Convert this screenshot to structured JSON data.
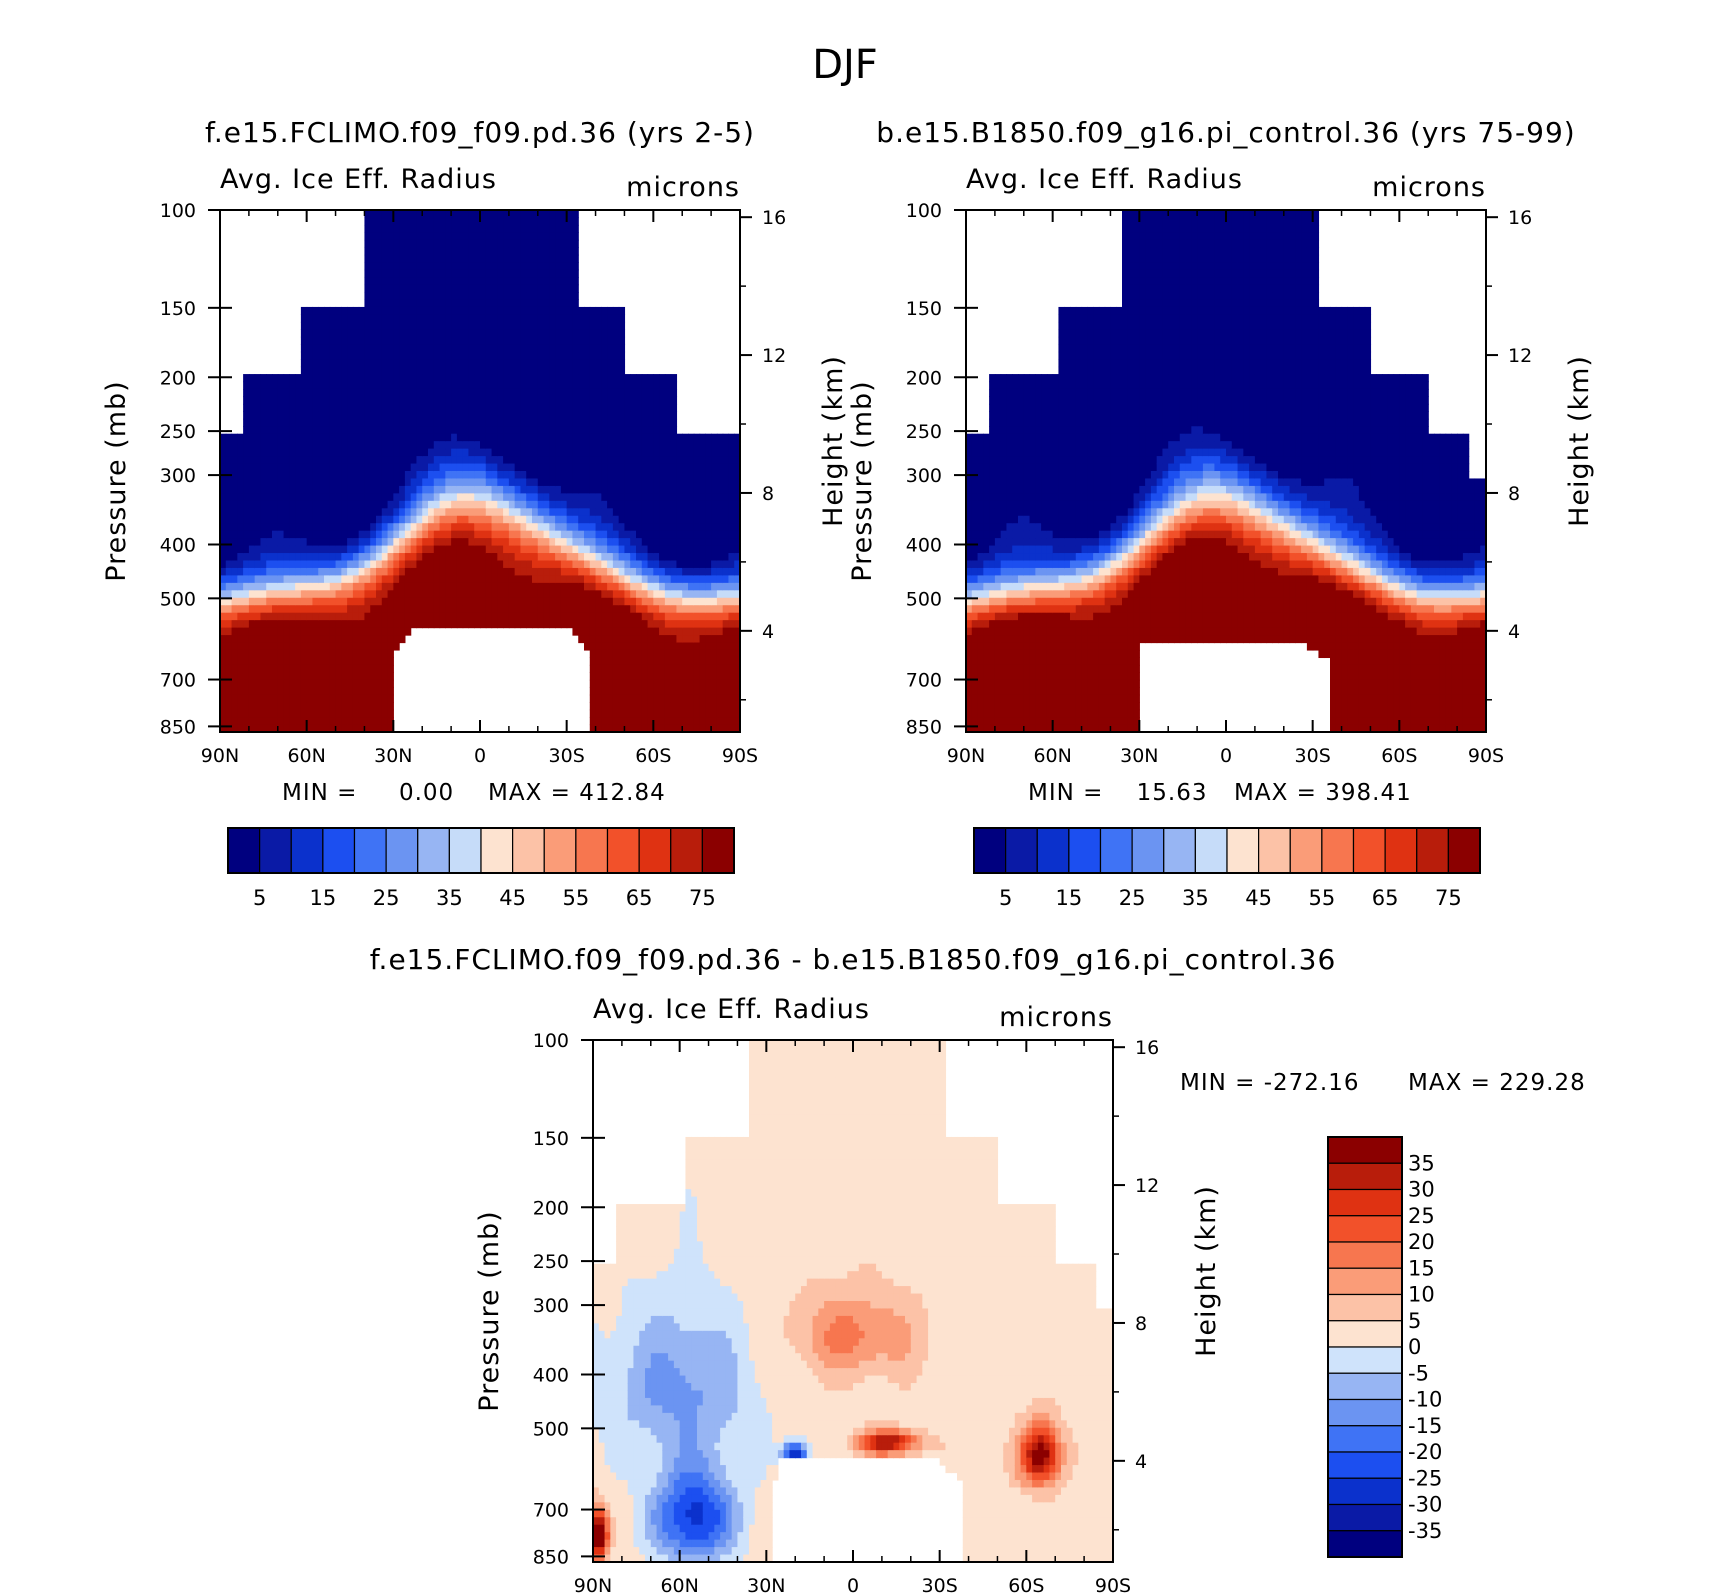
{
  "figure": {
    "title": "DJF"
  },
  "colors": {
    "abs_palette": [
      "#00007f",
      "#0a1aa6",
      "#0b31cc",
      "#1c4ff0",
      "#3f73f5",
      "#6b94f2",
      "#97b5f3",
      "#c6dcf9",
      "#fde3d0",
      "#fcc2a7",
      "#fa9c78",
      "#f7764f",
      "#f2512a",
      "#df3212",
      "#b81d0b",
      "#8b0000"
    ],
    "diff_palette": [
      "#00007f",
      "#0a1aa6",
      "#0b31cc",
      "#1c4ff0",
      "#3f73f5",
      "#6b94f2",
      "#97b5f3",
      "#cfe3fb",
      "#fde3d0",
      "#fcc2a7",
      "#fa9c78",
      "#f7764f",
      "#f2512a",
      "#df3212",
      "#b81d0b",
      "#8b0000"
    ]
  },
  "chart_data": [
    {
      "type": "heatmap",
      "id": "panel_a",
      "title": "f.e15.FCLIMO.f09_f09.pd.36 (yrs 2-5)",
      "left_label": "Avg. Ice Eff. Radius",
      "right_label": "microns",
      "xlabel": "",
      "ylabel": "Pressure (mb)",
      "ylabel_right": "Height (km)",
      "x_ticks": [
        "90N",
        "60N",
        "30N",
        "0",
        "30S",
        "60S",
        "90S"
      ],
      "y_ticks": [
        "100",
        "150",
        "200",
        "250",
        "300",
        "400",
        "500",
        "700",
        "850"
      ],
      "y_ticks_right": [
        "16",
        "12",
        "8",
        "4"
      ],
      "xlim": [
        90,
        -90
      ],
      "ylim": [
        870,
        100
      ],
      "min_text": "MIN =     0.00",
      "max_text": "MAX = 412.84",
      "colorbar": {
        "orientation": "horizontal",
        "labels": [
          "5",
          "15",
          "25",
          "35",
          "45",
          "55",
          "65",
          "75"
        ],
        "levels": [
          5,
          10,
          15,
          20,
          25,
          30,
          35,
          40,
          45,
          50,
          55,
          60,
          65,
          70,
          75
        ]
      },
      "cloud_top_mb": [
        [
          90,
          250
        ],
        [
          75,
          200
        ],
        [
          50,
          150
        ],
        [
          30,
          100
        ],
        [
          -27,
          100
        ],
        [
          -42,
          150
        ],
        [
          -60,
          200
        ],
        [
          -78,
          250
        ],
        [
          -90,
          250
        ]
      ],
      "surface_gap": [
        [
          30,
          620
        ],
        [
          22,
          560
        ],
        [
          -30,
          560
        ],
        [
          -38,
          620
        ]
      ]
    },
    {
      "type": "heatmap",
      "id": "panel_b",
      "title": "b.e15.B1850.f09_g16.pi_control.36 (yrs 75-99)",
      "left_label": "Avg. Ice Eff. Radius",
      "right_label": "microns",
      "xlabel": "",
      "ylabel": "Pressure (mb)",
      "ylabel_right": "Height (km)",
      "x_ticks": [
        "90N",
        "60N",
        "30N",
        "0",
        "30S",
        "60S",
        "90S"
      ],
      "y_ticks": [
        "100",
        "150",
        "200",
        "250",
        "300",
        "400",
        "500",
        "700",
        "850"
      ],
      "y_ticks_right": [
        "16",
        "12",
        "8",
        "4"
      ],
      "xlim": [
        90,
        -90
      ],
      "ylim": [
        870,
        100
      ],
      "min_text": "MIN =    15.63",
      "max_text": "MAX = 398.41",
      "colorbar": {
        "orientation": "horizontal",
        "labels": [
          "5",
          "15",
          "25",
          "35",
          "45",
          "55",
          "65",
          "75"
        ],
        "levels": [
          5,
          10,
          15,
          20,
          25,
          30,
          35,
          40,
          45,
          50,
          55,
          60,
          65,
          70,
          75
        ]
      },
      "cloud_top_mb": [
        [
          90,
          250
        ],
        [
          75,
          200
        ],
        [
          40,
          150
        ],
        [
          30,
          100
        ],
        [
          -25,
          100
        ],
        [
          -40,
          150
        ],
        [
          -62,
          200
        ],
        [
          -80,
          250
        ],
        [
          -90,
          300
        ]
      ],
      "surface_gap": [
        [
          30,
          600
        ],
        [
          25,
          600
        ],
        [
          -25,
          600
        ],
        [
          -35,
          640
        ]
      ]
    },
    {
      "type": "heatmap",
      "id": "panel_diff",
      "title": "f.e15.FCLIMO.f09_f09.pd.36 - b.e15.B1850.f09_g16.pi_control.36",
      "left_label": "Avg. Ice Eff. Radius",
      "right_label": "microns",
      "xlabel": "",
      "ylabel": "Pressure (mb)",
      "ylabel_right": "Height (km)",
      "x_ticks": [
        "90N",
        "60N",
        "30N",
        "0",
        "30S",
        "60S",
        "90S"
      ],
      "y_ticks": [
        "100",
        "150",
        "200",
        "250",
        "300",
        "400",
        "500",
        "700",
        "850"
      ],
      "y_ticks_right": [
        "16",
        "12",
        "8",
        "4"
      ],
      "xlim": [
        90,
        -90
      ],
      "ylim": [
        870,
        100
      ],
      "min_text": "MIN = -272.16",
      "max_text": "MAX = 229.28",
      "colorbar": {
        "orientation": "vertical",
        "labels": [
          "35",
          "30",
          "25",
          "20",
          "15",
          "10",
          "5",
          "0",
          "-5",
          "-10",
          "-15",
          "-20",
          "-25",
          "-30",
          "-35"
        ],
        "levels": [
          -35,
          -30,
          -25,
          -20,
          -15,
          -10,
          -5,
          0,
          5,
          10,
          15,
          20,
          25,
          30,
          35
        ]
      },
      "cloud_top_mb": [
        [
          90,
          250
        ],
        [
          75,
          200
        ],
        [
          40,
          150
        ],
        [
          30,
          100
        ],
        [
          -25,
          100
        ],
        [
          -40,
          150
        ],
        [
          -62,
          200
        ],
        [
          -80,
          250
        ],
        [
          -90,
          300
        ]
      ],
      "surface_gap": [
        [
          27,
          620
        ],
        [
          25,
          560
        ],
        [
          -27,
          560
        ],
        [
          -38,
          620
        ]
      ]
    }
  ]
}
